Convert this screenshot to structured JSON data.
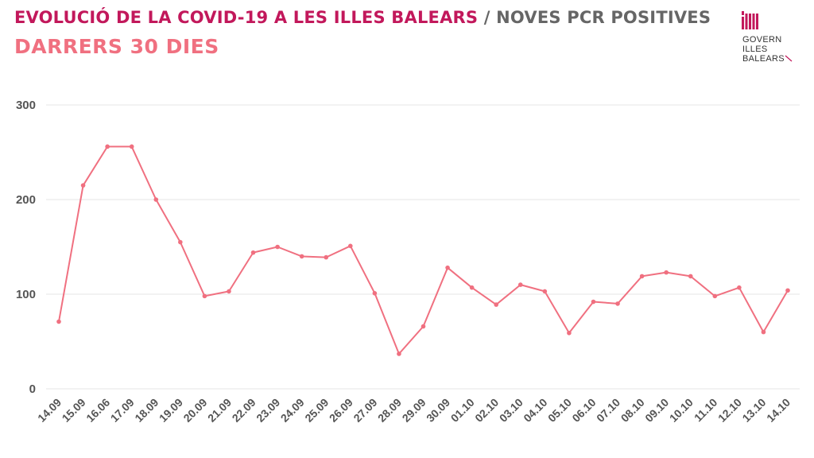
{
  "header": {
    "title": "EVOLUCIÓ DE LA COVID-19 A LES ILLES BALEARS",
    "separator": "/",
    "title_suffix": "NOVES PCR POSITIVES",
    "subtitle": "DARRERS 30 DIES"
  },
  "logo": {
    "line1": "GOVERN",
    "line2": "ILLES",
    "line3": "BALEARS"
  },
  "colors": {
    "title": "#c2185b",
    "line": "#f07080",
    "grid": "#e6e6e6",
    "tick_text": "#555555"
  },
  "chart_data": {
    "type": "line",
    "title": "EVOLUCIÓ DE LA COVID-19 A LES ILLES BALEARS / NOVES PCR POSITIVES",
    "subtitle": "DARRERS 30 DIES",
    "xlabel": "",
    "ylabel": "",
    "ylim": [
      0,
      300
    ],
    "yticks": [
      0,
      100,
      200,
      300
    ],
    "grid": true,
    "categories": [
      "14.09",
      "15.09",
      "16.06",
      "17.09",
      "18.09",
      "19.09",
      "20.09",
      "21.09",
      "22.09",
      "23.09",
      "24.09",
      "25.09",
      "26.09",
      "27.09",
      "28.09",
      "29.09",
      "30.09",
      "01.10",
      "02.10",
      "03.10",
      "04.10",
      "05.10",
      "06.10",
      "07.10",
      "08.10",
      "09.10",
      "10.10",
      "11.10",
      "12.10",
      "13.10",
      "14.10"
    ],
    "values": [
      71,
      215,
      256,
      256,
      200,
      155,
      98,
      103,
      144,
      150,
      140,
      139,
      151,
      101,
      37,
      66,
      128,
      107,
      89,
      110,
      103,
      59,
      92,
      90,
      119,
      123,
      119,
      98,
      107,
      60,
      104
    ]
  }
}
